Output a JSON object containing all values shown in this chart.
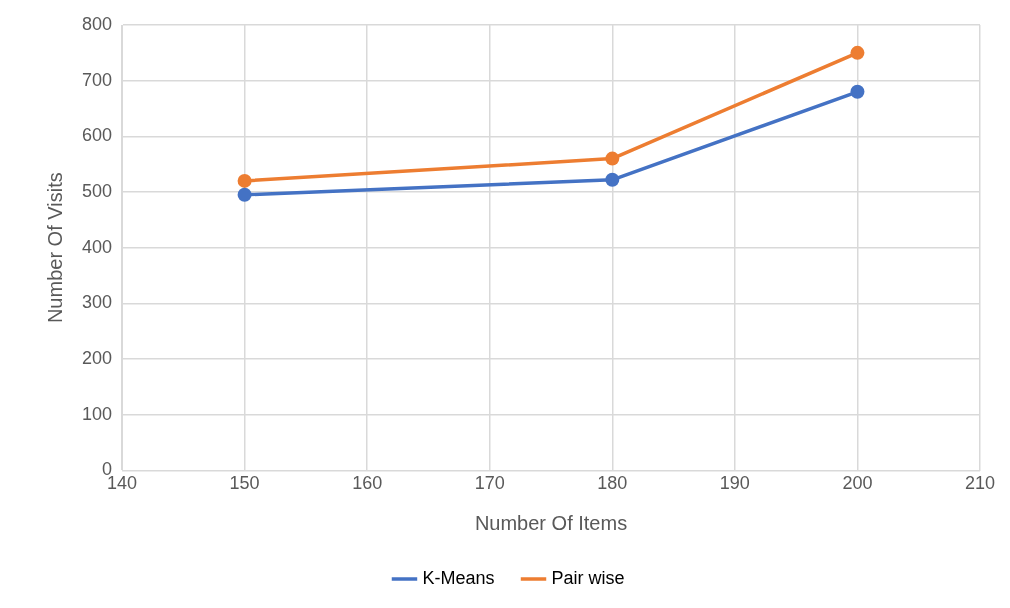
{
  "chart_data": {
    "type": "line",
    "xlabel": "Number Of Items",
    "ylabel": "Number Of Visits",
    "x": [
      150,
      180,
      200
    ],
    "series": [
      {
        "name": "K-Means",
        "color": "#4472c4",
        "values": [
          495,
          522,
          680
        ]
      },
      {
        "name": "Pair wise",
        "color": "#ed7d31",
        "values": [
          520,
          560,
          750
        ]
      }
    ],
    "xlim": [
      140,
      210
    ],
    "xticks": [
      140,
      150,
      160,
      170,
      180,
      190,
      200,
      210
    ],
    "ylim": [
      0,
      800
    ],
    "yticks": [
      0,
      100,
      200,
      300,
      400,
      500,
      600,
      700,
      800
    ],
    "grid": true,
    "legend": "bottom",
    "marker": "circle",
    "line_style": "solid"
  }
}
